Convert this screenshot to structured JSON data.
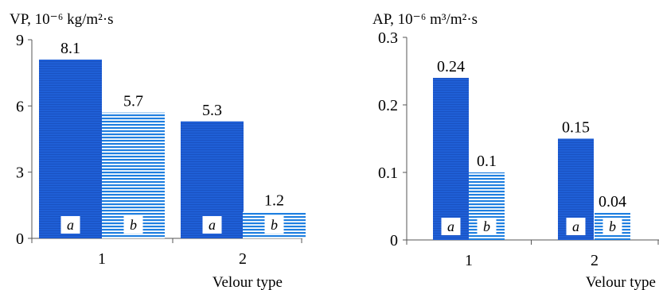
{
  "colors": {
    "series_a": "#1f5fd6",
    "series_b": "#1f7fe0",
    "axis": "#555555"
  },
  "chart_data": [
    {
      "type": "bar",
      "ylabel": "VP, 10⁻⁶ kg/m²·s",
      "xlabel": "Velour type",
      "categories": [
        "1",
        "2"
      ],
      "ylim": [
        0,
        9
      ],
      "yticks": [
        "0",
        "3",
        "6",
        "9"
      ],
      "grid": false,
      "series": [
        {
          "id": "a",
          "bar_label": "a",
          "pattern": "solid-fine-lines",
          "values": [
            8.1,
            5.3
          ],
          "data_labels": [
            "8.1",
            "5.3"
          ]
        },
        {
          "id": "b",
          "bar_label": "b",
          "pattern": "horizontal-stripes",
          "values": [
            5.7,
            1.2
          ],
          "data_labels": [
            "5.7",
            "1.2"
          ]
        }
      ]
    },
    {
      "type": "bar",
      "ylabel": "AP, 10⁻⁶ m³/m²·s",
      "xlabel": "Velour type",
      "categories": [
        "1",
        "2"
      ],
      "ylim": [
        0,
        0.3
      ],
      "yticks": [
        "0",
        "0.1",
        "0.2",
        "0.3"
      ],
      "grid": false,
      "series": [
        {
          "id": "a",
          "bar_label": "a",
          "pattern": "solid-fine-lines",
          "values": [
            0.24,
            0.15
          ],
          "data_labels": [
            "0.24",
            "0.15"
          ]
        },
        {
          "id": "b",
          "bar_label": "b",
          "pattern": "horizontal-stripes",
          "values": [
            0.1,
            0.04
          ],
          "data_labels": [
            "0.1",
            "0.04"
          ]
        }
      ]
    }
  ]
}
